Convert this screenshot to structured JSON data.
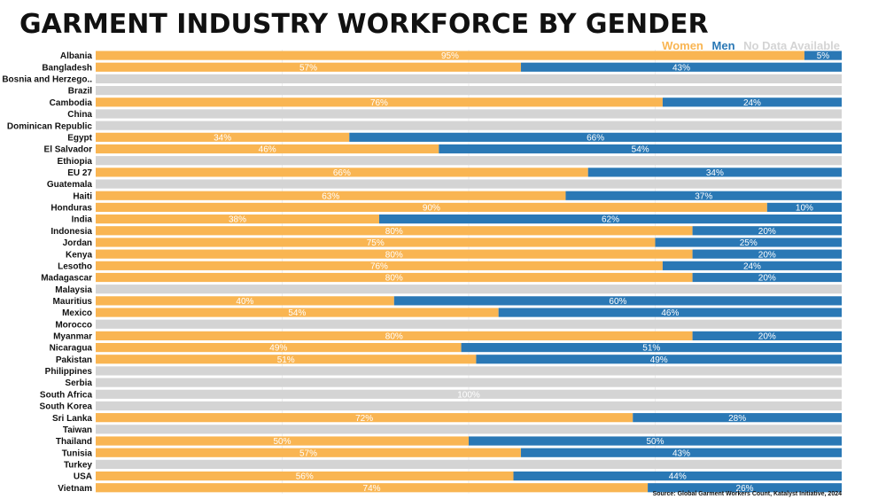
{
  "header": {
    "title": "GARMENT INDUSTRY WORKFORCE BY GENDER",
    "source": "Source: Global Garment Workers Count, Katalyst Initiative, 2024"
  },
  "colors": {
    "women": "#F9B552",
    "men": "#2A78B5",
    "no_data": "#D4D4D4",
    "label_text": "#FFFFFF"
  },
  "chart_data": {
    "type": "bar",
    "orientation": "horizontal",
    "stacked": "percent",
    "title": "GARMENT INDUSTRY WORKFORCE BY GENDER",
    "legend_position": "top-right",
    "legend": [
      "Women",
      "Men",
      "No Data Available"
    ],
    "categories": [
      "Albania",
      "Bangladesh",
      "Bosnia and Herzego..",
      "Brazil",
      "Cambodia",
      "China",
      "Dominican Republic",
      "Egypt",
      "El Salvador",
      "Ethiopia",
      "EU 27",
      "Guatemala",
      "Haiti",
      "Honduras",
      "India",
      "Indonesia",
      "Jordan",
      "Kenya",
      "Lesotho",
      "Madagascar",
      "Malaysia",
      "Mauritius",
      "Mexico",
      "Morocco",
      "Myanmar",
      "Nicaragua",
      "Pakistan",
      "Philippines",
      "Serbia",
      "South Africa",
      "South Korea",
      "Sri Lanka",
      "Taiwan",
      "Thailand",
      "Tunisia",
      "Turkey",
      "USA",
      "Vietnam"
    ],
    "series": [
      {
        "name": "Women",
        "values": [
          95,
          57,
          null,
          null,
          76,
          null,
          null,
          34,
          46,
          null,
          66,
          null,
          63,
          90,
          38,
          80,
          75,
          80,
          76,
          80,
          null,
          40,
          54,
          null,
          80,
          49,
          51,
          null,
          null,
          null,
          null,
          72,
          null,
          50,
          57,
          null,
          56,
          74
        ]
      },
      {
        "name": "Men",
        "values": [
          5,
          43,
          null,
          null,
          24,
          null,
          null,
          66,
          54,
          null,
          34,
          null,
          37,
          10,
          62,
          20,
          25,
          20,
          24,
          20,
          null,
          60,
          46,
          null,
          20,
          51,
          49,
          null,
          null,
          null,
          null,
          28,
          null,
          50,
          43,
          null,
          44,
          26
        ]
      }
    ],
    "no_data_label": {
      "category": "South Africa",
      "text": "100%"
    },
    "xlim": [
      0,
      100
    ],
    "unit": "%"
  }
}
